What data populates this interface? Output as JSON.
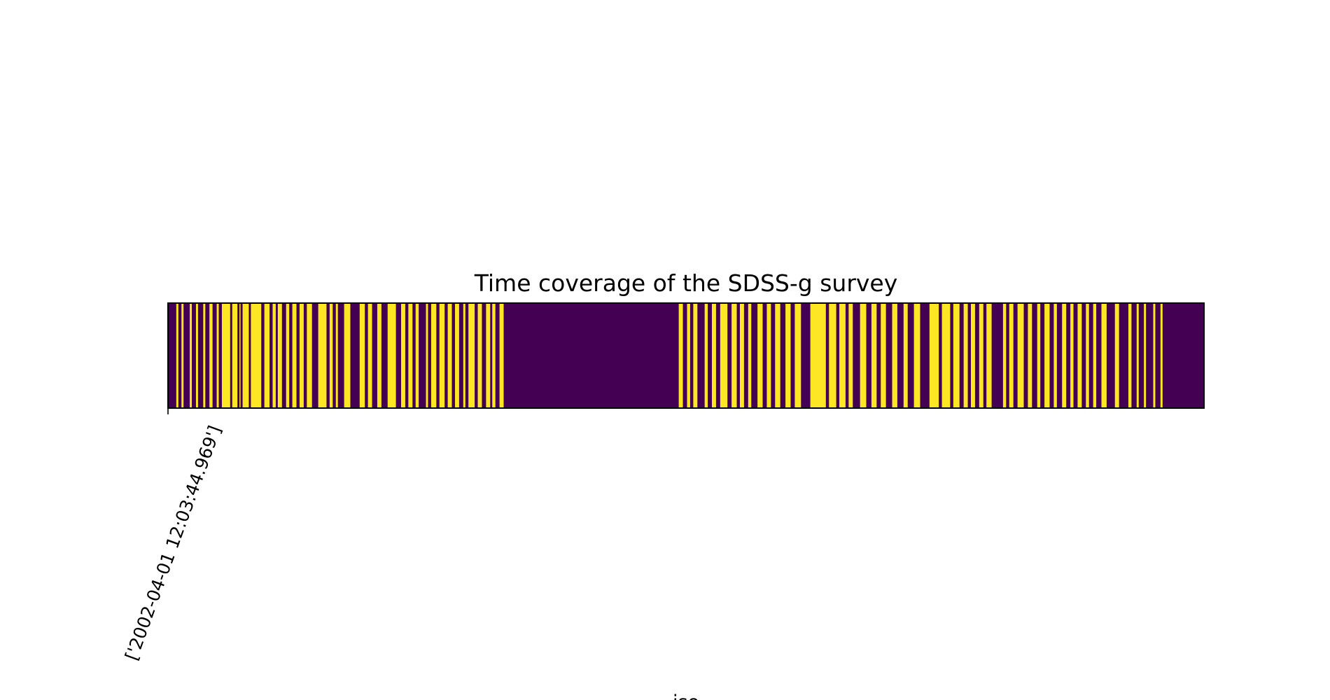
{
  "chart_data": {
    "type": "heatmap",
    "title": "Time coverage of the SDSS-g survey",
    "xlabel": "iso",
    "ylabel": "",
    "x_ticks": [
      "['2002-04-01 12:03:44.969']"
    ],
    "colormap": "viridis",
    "colors": {
      "observed": "#fde725",
      "not_observed": "#440154",
      "frame": "#000000"
    },
    "grid": false,
    "legend": "none",
    "coverage_spans": [
      [
        0.008,
        0.01
      ],
      [
        0.013,
        0.015
      ],
      [
        0.021,
        0.023
      ],
      [
        0.027,
        0.029
      ],
      [
        0.034,
        0.036
      ],
      [
        0.04,
        0.043
      ],
      [
        0.047,
        0.049
      ],
      [
        0.052,
        0.06
      ],
      [
        0.062,
        0.067
      ],
      [
        0.069,
        0.07
      ],
      [
        0.072,
        0.078
      ],
      [
        0.08,
        0.09
      ],
      [
        0.093,
        0.098
      ],
      [
        0.101,
        0.104
      ],
      [
        0.106,
        0.11
      ],
      [
        0.114,
        0.117
      ],
      [
        0.12,
        0.124
      ],
      [
        0.127,
        0.131
      ],
      [
        0.134,
        0.139
      ],
      [
        0.145,
        0.153
      ],
      [
        0.156,
        0.159
      ],
      [
        0.162,
        0.164
      ],
      [
        0.17,
        0.176
      ],
      [
        0.185,
        0.19
      ],
      [
        0.193,
        0.197
      ],
      [
        0.202,
        0.206
      ],
      [
        0.212,
        0.22
      ],
      [
        0.225,
        0.229
      ],
      [
        0.232,
        0.236
      ],
      [
        0.239,
        0.242
      ],
      [
        0.249,
        0.251
      ],
      [
        0.254,
        0.259
      ],
      [
        0.262,
        0.267
      ],
      [
        0.27,
        0.274
      ],
      [
        0.277,
        0.281
      ],
      [
        0.285,
        0.287
      ],
      [
        0.29,
        0.296
      ],
      [
        0.299,
        0.303
      ],
      [
        0.307,
        0.311
      ],
      [
        0.313,
        0.316
      ],
      [
        0.32,
        0.324
      ],
      [
        0.493,
        0.497
      ],
      [
        0.501,
        0.504
      ],
      [
        0.507,
        0.511
      ],
      [
        0.518,
        0.521
      ],
      [
        0.525,
        0.529
      ],
      [
        0.533,
        0.54
      ],
      [
        0.544,
        0.549
      ],
      [
        0.552,
        0.556
      ],
      [
        0.56,
        0.563
      ],
      [
        0.569,
        0.574
      ],
      [
        0.578,
        0.582
      ],
      [
        0.586,
        0.591
      ],
      [
        0.596,
        0.601
      ],
      [
        0.605,
        0.611
      ],
      [
        0.62,
        0.635
      ],
      [
        0.638,
        0.645
      ],
      [
        0.648,
        0.654
      ],
      [
        0.657,
        0.661
      ],
      [
        0.668,
        0.674
      ],
      [
        0.679,
        0.684
      ],
      [
        0.688,
        0.693
      ],
      [
        0.699,
        0.704
      ],
      [
        0.71,
        0.714
      ],
      [
        0.72,
        0.726
      ],
      [
        0.735,
        0.744
      ],
      [
        0.747,
        0.755
      ],
      [
        0.758,
        0.764
      ],
      [
        0.768,
        0.772
      ],
      [
        0.775,
        0.779
      ],
      [
        0.783,
        0.787
      ],
      [
        0.79,
        0.795
      ],
      [
        0.806,
        0.809
      ],
      [
        0.812,
        0.816
      ],
      [
        0.82,
        0.826
      ],
      [
        0.83,
        0.834
      ],
      [
        0.839,
        0.842
      ],
      [
        0.846,
        0.851
      ],
      [
        0.855,
        0.858
      ],
      [
        0.863,
        0.867
      ],
      [
        0.871,
        0.874
      ],
      [
        0.878,
        0.882
      ],
      [
        0.886,
        0.889
      ],
      [
        0.893,
        0.896
      ],
      [
        0.901,
        0.906
      ],
      [
        0.914,
        0.918
      ],
      [
        0.927,
        0.93
      ],
      [
        0.935,
        0.937
      ],
      [
        0.942,
        0.944
      ],
      [
        0.951,
        0.953
      ],
      [
        0.958,
        0.96
      ]
    ],
    "gap_lines": [
      0.025,
      0.045,
      0.061,
      0.071,
      0.079,
      0.091,
      0.099,
      0.118,
      0.125,
      0.14,
      0.154,
      0.165,
      0.177,
      0.198,
      0.221,
      0.237,
      0.252,
      0.268,
      0.282,
      0.297,
      0.304,
      0.312,
      0.512,
      0.522,
      0.541,
      0.557,
      0.575,
      0.592,
      0.612,
      0.646,
      0.655,
      0.675,
      0.685,
      0.705,
      0.727,
      0.745,
      0.765,
      0.78,
      0.796,
      0.817,
      0.827,
      0.843,
      0.852,
      0.868,
      0.883,
      0.897,
      0.907
    ]
  }
}
